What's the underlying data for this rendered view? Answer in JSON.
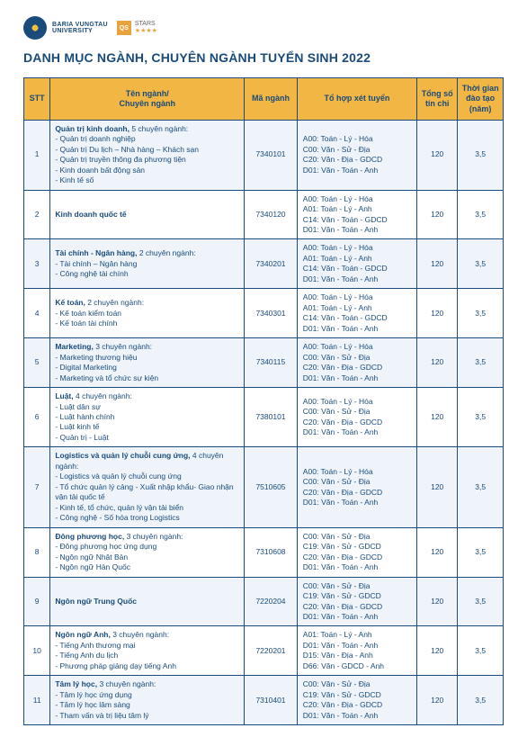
{
  "header": {
    "univ_top": "BARIA VUNGTAU",
    "univ_bot": "UNIVERSITY",
    "qs_label": "QS",
    "qs_top": "STARS",
    "qs_bot": "★★★★"
  },
  "title": "DANH MỤC NGÀNH, CHUYÊN NGÀNH TUYỂN SINH 2022",
  "columns": {
    "stt": "STT",
    "name": "Tên ngành/\nChuyên ngành",
    "code": "Mã ngành",
    "combo": "Tổ hợp xét tuyển",
    "credits": "Tổng số tín chỉ",
    "duration": "Thời gian đào tạo (năm)"
  },
  "rows": [
    {
      "stt": "1",
      "name": "<span class=bold>Quản trị kinh doanh,</span> 5 chuyên ngành:<br>- Quản trị doanh nghiệp<br>- Quản trị Du lịch – Nhà hàng – Khách sạn<br>- Quản trị truyền thông đa phương tiện<br>- Kinh doanh bất động sản<br>- Kinh tế số",
      "code": "7340101",
      "combo": "A00: Toán - Lý - Hóa<br>C00: Văn - Sử - Địa<br>C20: Văn - Địa - GDCD<br>D01: Văn - Toán - Anh",
      "credits": "120",
      "duration": "3,5"
    },
    {
      "stt": "2",
      "name": "<span class=bold>Kinh doanh quốc tế</span>",
      "code": "7340120",
      "combo": "A00: Toán - Lý - Hóa<br>A01: Toán - Lý - Anh<br>C14: Văn - Toán - GDCD<br>D01: Văn - Toán - Anh",
      "credits": "120",
      "duration": "3,5"
    },
    {
      "stt": "3",
      "name": "<span class=bold>Tài chính - Ngân hàng,</span> 2 chuyên ngành:<br>- Tài chính – Ngân hàng<br>- Công nghệ tài chính",
      "code": "7340201",
      "combo": "A00: Toán - Lý - Hóa<br>A01: Toán - Lý - Anh<br>C14: Văn - Toán - GDCD<br>D01: Văn - Toán - Anh",
      "credits": "120",
      "duration": "3,5"
    },
    {
      "stt": "4",
      "name": "<span class=bold>Kế toán,</span> 2 chuyên ngành:<br>- Kế toán kiểm toán<br>- Kế toán tài chính",
      "code": "7340301",
      "combo": "A00: Toán - Lý - Hóa<br>A01: Toán - Lý - Anh<br>C14: Văn - Toán - GDCD<br>D01: Văn - Toán - Anh",
      "credits": "120",
      "duration": "3,5"
    },
    {
      "stt": "5",
      "name": "<span class=bold>Marketing,</span> 3 chuyên ngành:<br>- Marketing thương hiệu<br>- Digital Marketing<br>- Marketing và tổ chức sự kiện",
      "code": "7340115",
      "combo": "A00: Toán - Lý - Hóa<br>C00: Văn - Sử - Địa<br>C20: Văn - Địa - GDCD<br>D01: Văn - Toán - Anh",
      "credits": "120",
      "duration": "3,5"
    },
    {
      "stt": "6",
      "name": "<span class=bold>Luật,</span> 4 chuyên ngành:<br>- Luật dân sự<br>- Luật hành chính<br>- Luật kinh tế<br>- Quản trị - Luật",
      "code": "7380101",
      "combo": "A00: Toán - Lý - Hóa<br>C00: Văn - Sử - Địa<br>C20: Văn - Địa - GDCD<br>D01: Văn - Toán - Anh",
      "credits": "120",
      "duration": "3,5"
    },
    {
      "stt": "7",
      "name": "<span class=bold>Logistics và quản lý chuỗi cung ứng,</span> 4 chuyên ngành:<br>- Logistics và quản lý chuỗi cung ứng<br>- Tổ chức quản lý cảng - Xuất nhập khẩu- Giao nhận vận tải quốc tế<br>- Kinh tế, tổ chức, quản lý vận tải biển<br>- Công nghệ - Số hóa trong Logistics",
      "code": "7510605",
      "combo": "A00: Toán - Lý - Hóa<br>C00: Văn - Sử - Địa<br>C20: Văn - Địa - GDCD<br>D01: Văn - Toán - Anh",
      "credits": "120",
      "duration": "3,5"
    },
    {
      "stt": "8",
      "name": "<span class=bold>Đông phương học,</span> 3 chuyên ngành:<br>- Đông phương học ứng dụng<br>- Ngôn ngữ Nhật Bản<br>- Ngôn ngữ Hàn Quốc",
      "code": "7310608",
      "combo": "C00: Văn - Sử - Địa<br>C19: Văn - Sử - GDCD<br>C20: Văn - Địa - GDCD<br>D01: Văn - Toán - Anh",
      "credits": "120",
      "duration": "3,5"
    },
    {
      "stt": "9",
      "name": "<span class=bold>Ngôn ngữ Trung Quốc</span>",
      "code": "7220204",
      "combo": "C00: Văn - Sử - Địa<br>C19: Văn - Sử - GDCD<br>C20: Văn - Địa - GDCD<br>D01: Văn - Toán - Anh",
      "credits": "120",
      "duration": "3,5"
    },
    {
      "stt": "10",
      "name": "<span class=bold>Ngôn ngữ Anh,</span> 3 chuyên ngành:<br>- Tiếng Anh thương mại<br>- Tiếng Anh du lịch<br>- Phương pháp giảng dạy tiếng Anh",
      "code": "7220201",
      "combo": "A01: Toán - Lý - Anh<br>D01: Văn - Toán - Anh<br>D15: Văn - Địa - Anh<br>D66: Văn - GDCD - Anh",
      "credits": "120",
      "duration": "3,5"
    },
    {
      "stt": "11",
      "name": "<span class=bold>Tâm lý học,</span> 3 chuyên ngành:<br>- Tâm lý học ứng dụng<br>- Tâm lý học lâm sàng<br>- Tham vấn và trị liệu tâm lý",
      "code": "7310401",
      "combo": "C00: Văn - Sử - Địa<br>C19: Văn - Sử - GDCD<br>C20: Văn - Địa - GDCD<br>D01: Văn - Toán - Anh",
      "credits": "120",
      "duration": "3,5"
    }
  ]
}
